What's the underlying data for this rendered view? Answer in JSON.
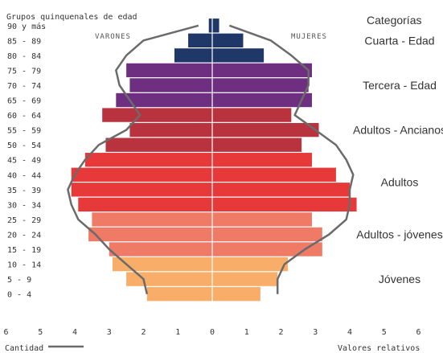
{
  "chart_data": {
    "type": "bar",
    "orientation": "horizontal",
    "title": "Grupos quinquenales de edad",
    "left_label": "VARONES",
    "right_label": "MUJERES",
    "legend_left": "Cantidad",
    "xlabel": "Valores relativos",
    "xlim": [
      -6,
      6
    ],
    "x_ticks": [
      "6",
      "5",
      "4",
      "3",
      "2",
      "1",
      "0",
      "1",
      "2",
      "3",
      "4",
      "5",
      "6"
    ],
    "legend_title": "Categorías",
    "categories": [
      "0 - 4",
      "5 - 9",
      "10 - 14",
      "15 - 19",
      "20 - 24",
      "25 - 29",
      "30 - 34",
      "35 - 39",
      "40 - 44",
      "45 - 49",
      "50 - 54",
      "55 - 59",
      "60 - 64",
      "65 - 69",
      "70 - 74",
      "75 - 79",
      "80 - 84",
      "85 - 89",
      "90 y más"
    ],
    "series": [
      {
        "name": "VARONES",
        "values": [
          1.9,
          2.5,
          2.9,
          3.0,
          3.6,
          3.5,
          3.9,
          4.1,
          4.1,
          3.7,
          3.1,
          2.4,
          3.2,
          2.8,
          2.4,
          2.5,
          1.1,
          0.7,
          0.1
        ]
      },
      {
        "name": "MUJERES",
        "values": [
          1.4,
          1.9,
          2.2,
          3.2,
          3.2,
          2.9,
          4.2,
          4.0,
          3.6,
          2.9,
          2.6,
          3.1,
          2.3,
          2.9,
          2.8,
          2.9,
          1.5,
          0.9,
          0.2
        ]
      }
    ],
    "outline": {
      "VARONES": [
        1.9,
        2.0,
        2.5,
        3.0,
        3.4,
        3.9,
        4.1,
        4.2,
        4.0,
        3.7,
        3.3,
        2.5,
        2.1,
        2.4,
        2.7,
        2.8,
        2.5,
        2.0,
        0.4
      ],
      "MUJERES": [
        1.9,
        1.9,
        2.1,
        2.7,
        3.4,
        3.9,
        4.0,
        4.0,
        4.1,
        3.9,
        3.6,
        3.0,
        2.4,
        2.6,
        2.8,
        2.8,
        2.3,
        1.7,
        0.5
      ]
    },
    "age_groups": [
      {
        "label": "Cuarta - Edad",
        "rows": [
          16,
          17,
          18
        ],
        "color": "#1f3868"
      },
      {
        "label": "Tercera - Edad",
        "rows": [
          13,
          14,
          15
        ],
        "color": "#6e2f80"
      },
      {
        "label": "Adultos - Ancianos",
        "rows": [
          10,
          11,
          12
        ],
        "color": "#b8333e"
      },
      {
        "label": "Adultos",
        "rows": [
          6,
          7,
          8,
          9
        ],
        "color": "#e8393a"
      },
      {
        "label": "Adultos - jóvenes",
        "rows": [
          3,
          4,
          5
        ],
        "color": "#ef7a66"
      },
      {
        "label": "Jóvenes",
        "rows": [
          0,
          1,
          2
        ],
        "color": "#f8ad68"
      }
    ],
    "outline_color": "#6b6b6b"
  }
}
